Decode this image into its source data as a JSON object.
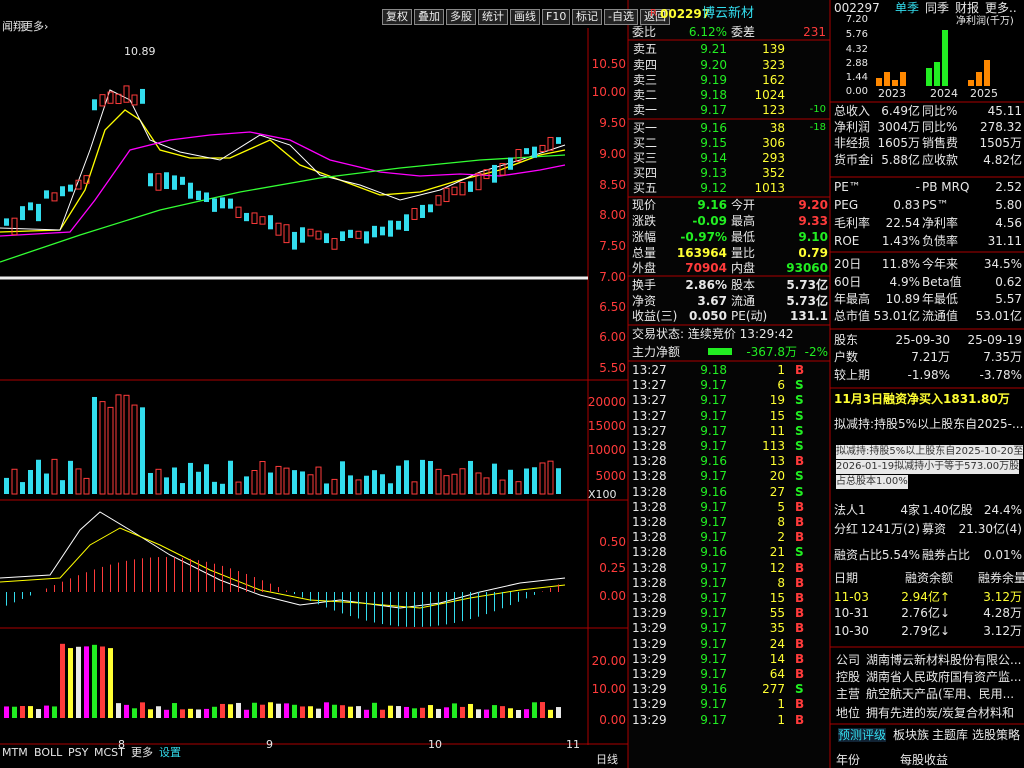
{
  "toolbar": {
    "left": [
      "闻翔",
      "更多›"
    ],
    "buttons": [
      "复权",
      "叠加",
      "多股",
      "统计",
      "画线",
      "F10",
      "标记",
      "-自选",
      "返回"
    ]
  },
  "chart": {
    "high_label": "10.89",
    "price_axis": [
      "10.50",
      "10.00",
      "9.50",
      "9.00",
      "8.50",
      "8.00",
      "7.50",
      "7.00",
      "6.50",
      "6.00",
      "5.50"
    ],
    "volume_axis": [
      "20000",
      "15000",
      "10000",
      "5000"
    ],
    "volume_unit": "X100",
    "macd_axis": [
      "0.50",
      "0.25",
      "0.00"
    ],
    "ind_axis": [
      "20.00",
      "10.00",
      "0.00"
    ],
    "dates": [
      "8",
      "9",
      "10",
      "11"
    ],
    "tabs": [
      "MTM",
      "BOLL",
      "PSY",
      "MCST",
      "更多",
      "设置"
    ],
    "period": "日线"
  },
  "quote": {
    "prefix": "R",
    "code": "002297",
    "name": "博云新材",
    "ratio": [
      "委比",
      "6.12%",
      "委差",
      "231"
    ],
    "asks": [
      [
        "卖五",
        "9.21",
        "139"
      ],
      [
        "卖四",
        "9.20",
        "323"
      ],
      [
        "卖三",
        "9.19",
        "162"
      ],
      [
        "卖二",
        "9.18",
        "1024"
      ],
      [
        "卖一",
        "9.17",
        "123"
      ]
    ],
    "ask_note": "-10",
    "bids": [
      [
        "买一",
        "9.16",
        "38"
      ],
      [
        "买二",
        "9.15",
        "306"
      ],
      [
        "买三",
        "9.14",
        "293"
      ],
      [
        "买四",
        "9.13",
        "352"
      ],
      [
        "买五",
        "9.12",
        "1013"
      ]
    ],
    "bid_note": "-18",
    "stats": [
      [
        "现价",
        "9.16",
        "今开",
        "9.20"
      ],
      [
        "涨跌",
        "-0.09",
        "最高",
        "9.33"
      ],
      [
        "涨幅",
        "-0.97%",
        "最低",
        "9.10"
      ],
      [
        "总量",
        "163964",
        "量比",
        "0.79"
      ],
      [
        "外盘",
        "70904",
        "内盘",
        "93060"
      ],
      [
        "换手",
        "2.86%",
        "股本",
        "5.73亿"
      ],
      [
        "净资",
        "3.67",
        "流通",
        "5.73亿"
      ],
      [
        "收益(三)",
        "0.050",
        "PE(动)",
        "131.1"
      ]
    ],
    "status": "交易状态: 连续竞价 13:29:42",
    "main": [
      "主力净额",
      "-367.8万",
      "-2%"
    ]
  },
  "trades": [
    [
      "13:27",
      "9.18",
      "1",
      "B"
    ],
    [
      "13:27",
      "9.17",
      "6",
      "S"
    ],
    [
      "13:27",
      "9.17",
      "19",
      "S"
    ],
    [
      "13:27",
      "9.17",
      "15",
      "S"
    ],
    [
      "13:27",
      "9.17",
      "11",
      "S"
    ],
    [
      "13:28",
      "9.17",
      "113",
      "S"
    ],
    [
      "13:28",
      "9.16",
      "13",
      "B"
    ],
    [
      "13:28",
      "9.17",
      "20",
      "S"
    ],
    [
      "13:28",
      "9.16",
      "27",
      "S"
    ],
    [
      "13:28",
      "9.17",
      "5",
      "B"
    ],
    [
      "13:28",
      "9.17",
      "8",
      "B"
    ],
    [
      "13:28",
      "9.17",
      "2",
      "B"
    ],
    [
      "13:28",
      "9.16",
      "21",
      "S"
    ],
    [
      "13:28",
      "9.17",
      "12",
      "B"
    ],
    [
      "13:28",
      "9.17",
      "8",
      "B"
    ],
    [
      "13:28",
      "9.17",
      "15",
      "B"
    ],
    [
      "13:29",
      "9.17",
      "55",
      "B"
    ],
    [
      "13:29",
      "9.17",
      "35",
      "B"
    ],
    [
      "13:29",
      "9.17",
      "24",
      "B"
    ],
    [
      "13:29",
      "9.17",
      "14",
      "B"
    ],
    [
      "13:29",
      "9.17",
      "64",
      "B"
    ],
    [
      "13:29",
      "9.16",
      "277",
      "S"
    ],
    [
      "13:29",
      "9.17",
      "1",
      "B"
    ],
    [
      "13:29",
      "9.17",
      "1",
      "B"
    ]
  ],
  "info": {
    "header": [
      "002297",
      "单季",
      "同季",
      "财报",
      "更多.."
    ],
    "mini_axis": [
      "7.20",
      "5.76",
      "4.32",
      "2.88",
      "1.44",
      "0.00"
    ],
    "mini_legend": "净利润(千万)",
    "mini_years": [
      "2023",
      "2024",
      "2025"
    ],
    "finance": [
      [
        "总收入",
        "6.49亿",
        "同比%",
        "45.11"
      ],
      [
        "净利润",
        "3004万",
        "同比%",
        "278.32"
      ],
      [
        "非经损",
        "1605万",
        "销售费",
        "1505万"
      ],
      [
        "货币金i",
        "5.88亿",
        "应收款",
        "4.82亿"
      ]
    ],
    "ratios": [
      [
        "PE™",
        "-",
        "PB MRQ",
        "2.52"
      ],
      [
        "PEG",
        "0.83",
        "PS™",
        "5.80"
      ],
      [
        "毛利率",
        "22.54",
        "净利率",
        "4.56"
      ],
      [
        "ROE",
        "1.43%",
        "负债率",
        "31.11"
      ]
    ],
    "perf": [
      [
        "20日",
        "11.8%",
        "今年来",
        "34.5%"
      ],
      [
        "60日",
        "4.9%",
        "Beta值",
        "0.62"
      ],
      [
        "年最高",
        "10.89",
        "年最低",
        "5.57"
      ],
      [
        "总市值",
        "53.01亿",
        "流通值",
        "53.01亿"
      ]
    ],
    "holders": [
      [
        "股东",
        "25-09-30",
        "25-09-19"
      ],
      [
        "户数",
        "7.21万",
        "7.35万"
      ],
      [
        "较上期",
        "-1.98%",
        "-3.78%"
      ]
    ],
    "banner": "11月3日融资净买入1831.80万",
    "notice": "拟减持:持股5%以上股东自2025-...",
    "tooltip": [
      "拟减持:持股5%以上股东自2025-10-20至",
      "2026-01-19拟减持小于等于573.00万股",
      "占总股本1.00%"
    ],
    "misc": [
      [
        "法人1",
        "4家",
        "1.40亿股",
        "24.4%"
      ],
      [
        "分红",
        "1241万(2)",
        "募资",
        "21.30亿(4)"
      ],
      [
        "融资占比",
        "5.54%",
        "融券占比",
        "0.01%"
      ]
    ],
    "margin_head": [
      "日期",
      "融资余额",
      "融券余量"
    ],
    "margin": [
      [
        "11-03",
        "2.94亿↑",
        "3.12万"
      ],
      [
        "10-31",
        "2.76亿↓",
        "4.28万"
      ],
      [
        "10-30",
        "2.79亿↓",
        "3.12万"
      ]
    ],
    "profile": [
      [
        "公司",
        "湖南博云新材料股份有限公..."
      ],
      [
        "控股",
        "湖南省人民政府国有资产监..."
      ],
      [
        "主营",
        "航空航天产品(军用、民用..."
      ],
      [
        "地位",
        "拥有先进的炭/炭复合材料和"
      ]
    ],
    "tabs": [
      "预测评级",
      "板块族",
      "主题库",
      "选股策略"
    ],
    "foot": [
      "年份",
      "每股收益"
    ]
  }
}
